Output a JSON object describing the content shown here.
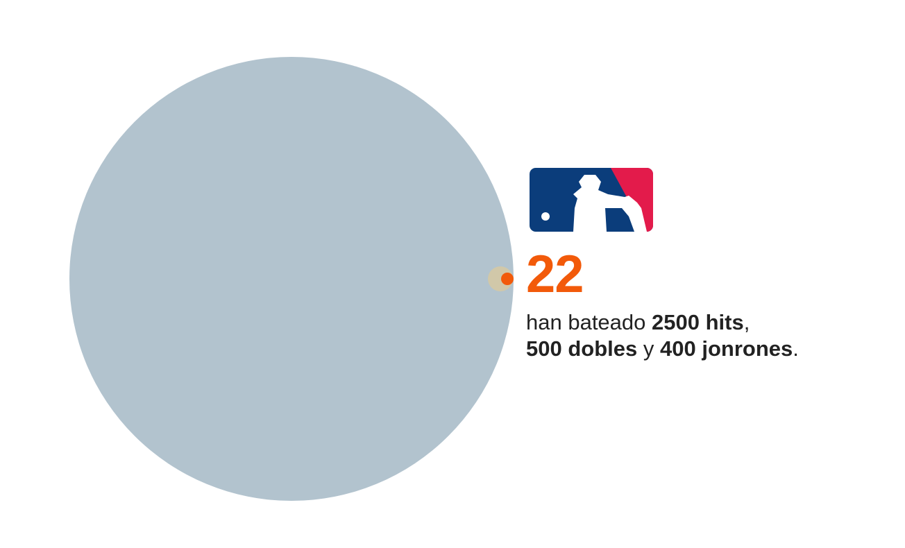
{
  "headline_number": "22",
  "lines": [
    [
      "han bateado",
      "2500 hits",
      ","
    ],
    [
      "500 dobles",
      "y",
      "400 jonrones",
      "."
    ]
  ]
}
